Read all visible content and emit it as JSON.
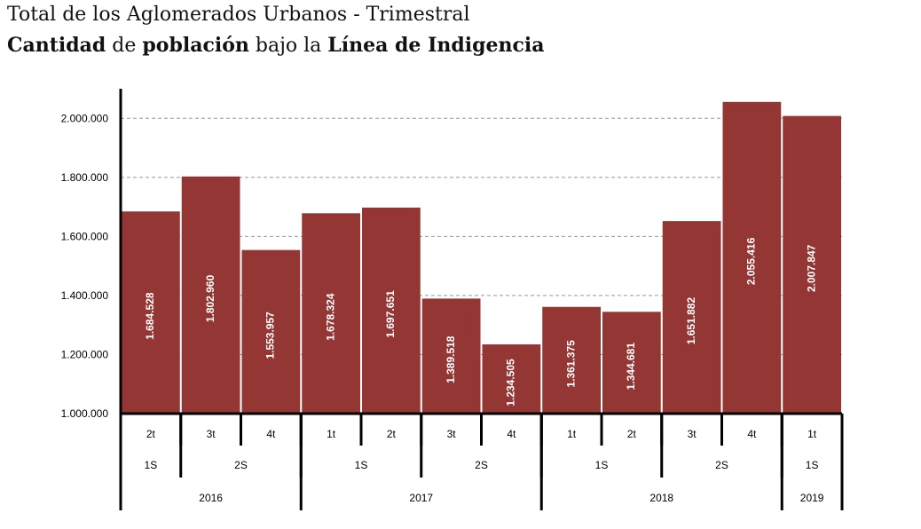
{
  "chart_data": {
    "type": "bar",
    "title": "Total de los Aglomerados Urbanos - Trimestral",
    "subtitle_parts": [
      "Cantidad",
      " de ",
      "población",
      " bajo la ",
      "Línea de Indigencia"
    ],
    "bar_color": "#943634",
    "grid": true,
    "ylim": [
      1000000,
      2100000
    ],
    "yticks": [
      1000000,
      1200000,
      1400000,
      1600000,
      1800000,
      2000000
    ],
    "ytick_labels": [
      "1.000.000",
      "1.200.000",
      "1.400.000",
      "1.600.000",
      "1.800.000",
      "2.000.000"
    ],
    "categories": [
      "2t",
      "3t",
      "4t",
      "1t",
      "2t",
      "3t",
      "4t",
      "1t",
      "2t",
      "3t",
      "4t",
      "1t"
    ],
    "values": [
      1684528,
      1802960,
      1553957,
      1678324,
      1697651,
      1389518,
      1234505,
      1361375,
      1344681,
      1651882,
      2055416,
      2007847
    ],
    "value_labels": [
      "1.684.528",
      "1.802.960",
      "1.553.957",
      "1.678.324",
      "1.697.651",
      "1.389.518",
      "1.234.505",
      "1.361.375",
      "1.344.681",
      "1.651.882",
      "2.055.416",
      "2.007.847"
    ],
    "semesters": [
      {
        "label": "1S",
        "count": 1
      },
      {
        "label": "2S",
        "count": 2
      },
      {
        "label": "1S",
        "count": 2
      },
      {
        "label": "2S",
        "count": 2
      },
      {
        "label": "1S",
        "count": 2
      },
      {
        "label": "2S",
        "count": 2
      },
      {
        "label": "1S",
        "count": 1
      }
    ],
    "years": [
      {
        "label": "2016",
        "count": 3
      },
      {
        "label": "2017",
        "count": 4
      },
      {
        "label": "2018",
        "count": 4
      },
      {
        "label": "2019",
        "count": 1
      }
    ]
  }
}
